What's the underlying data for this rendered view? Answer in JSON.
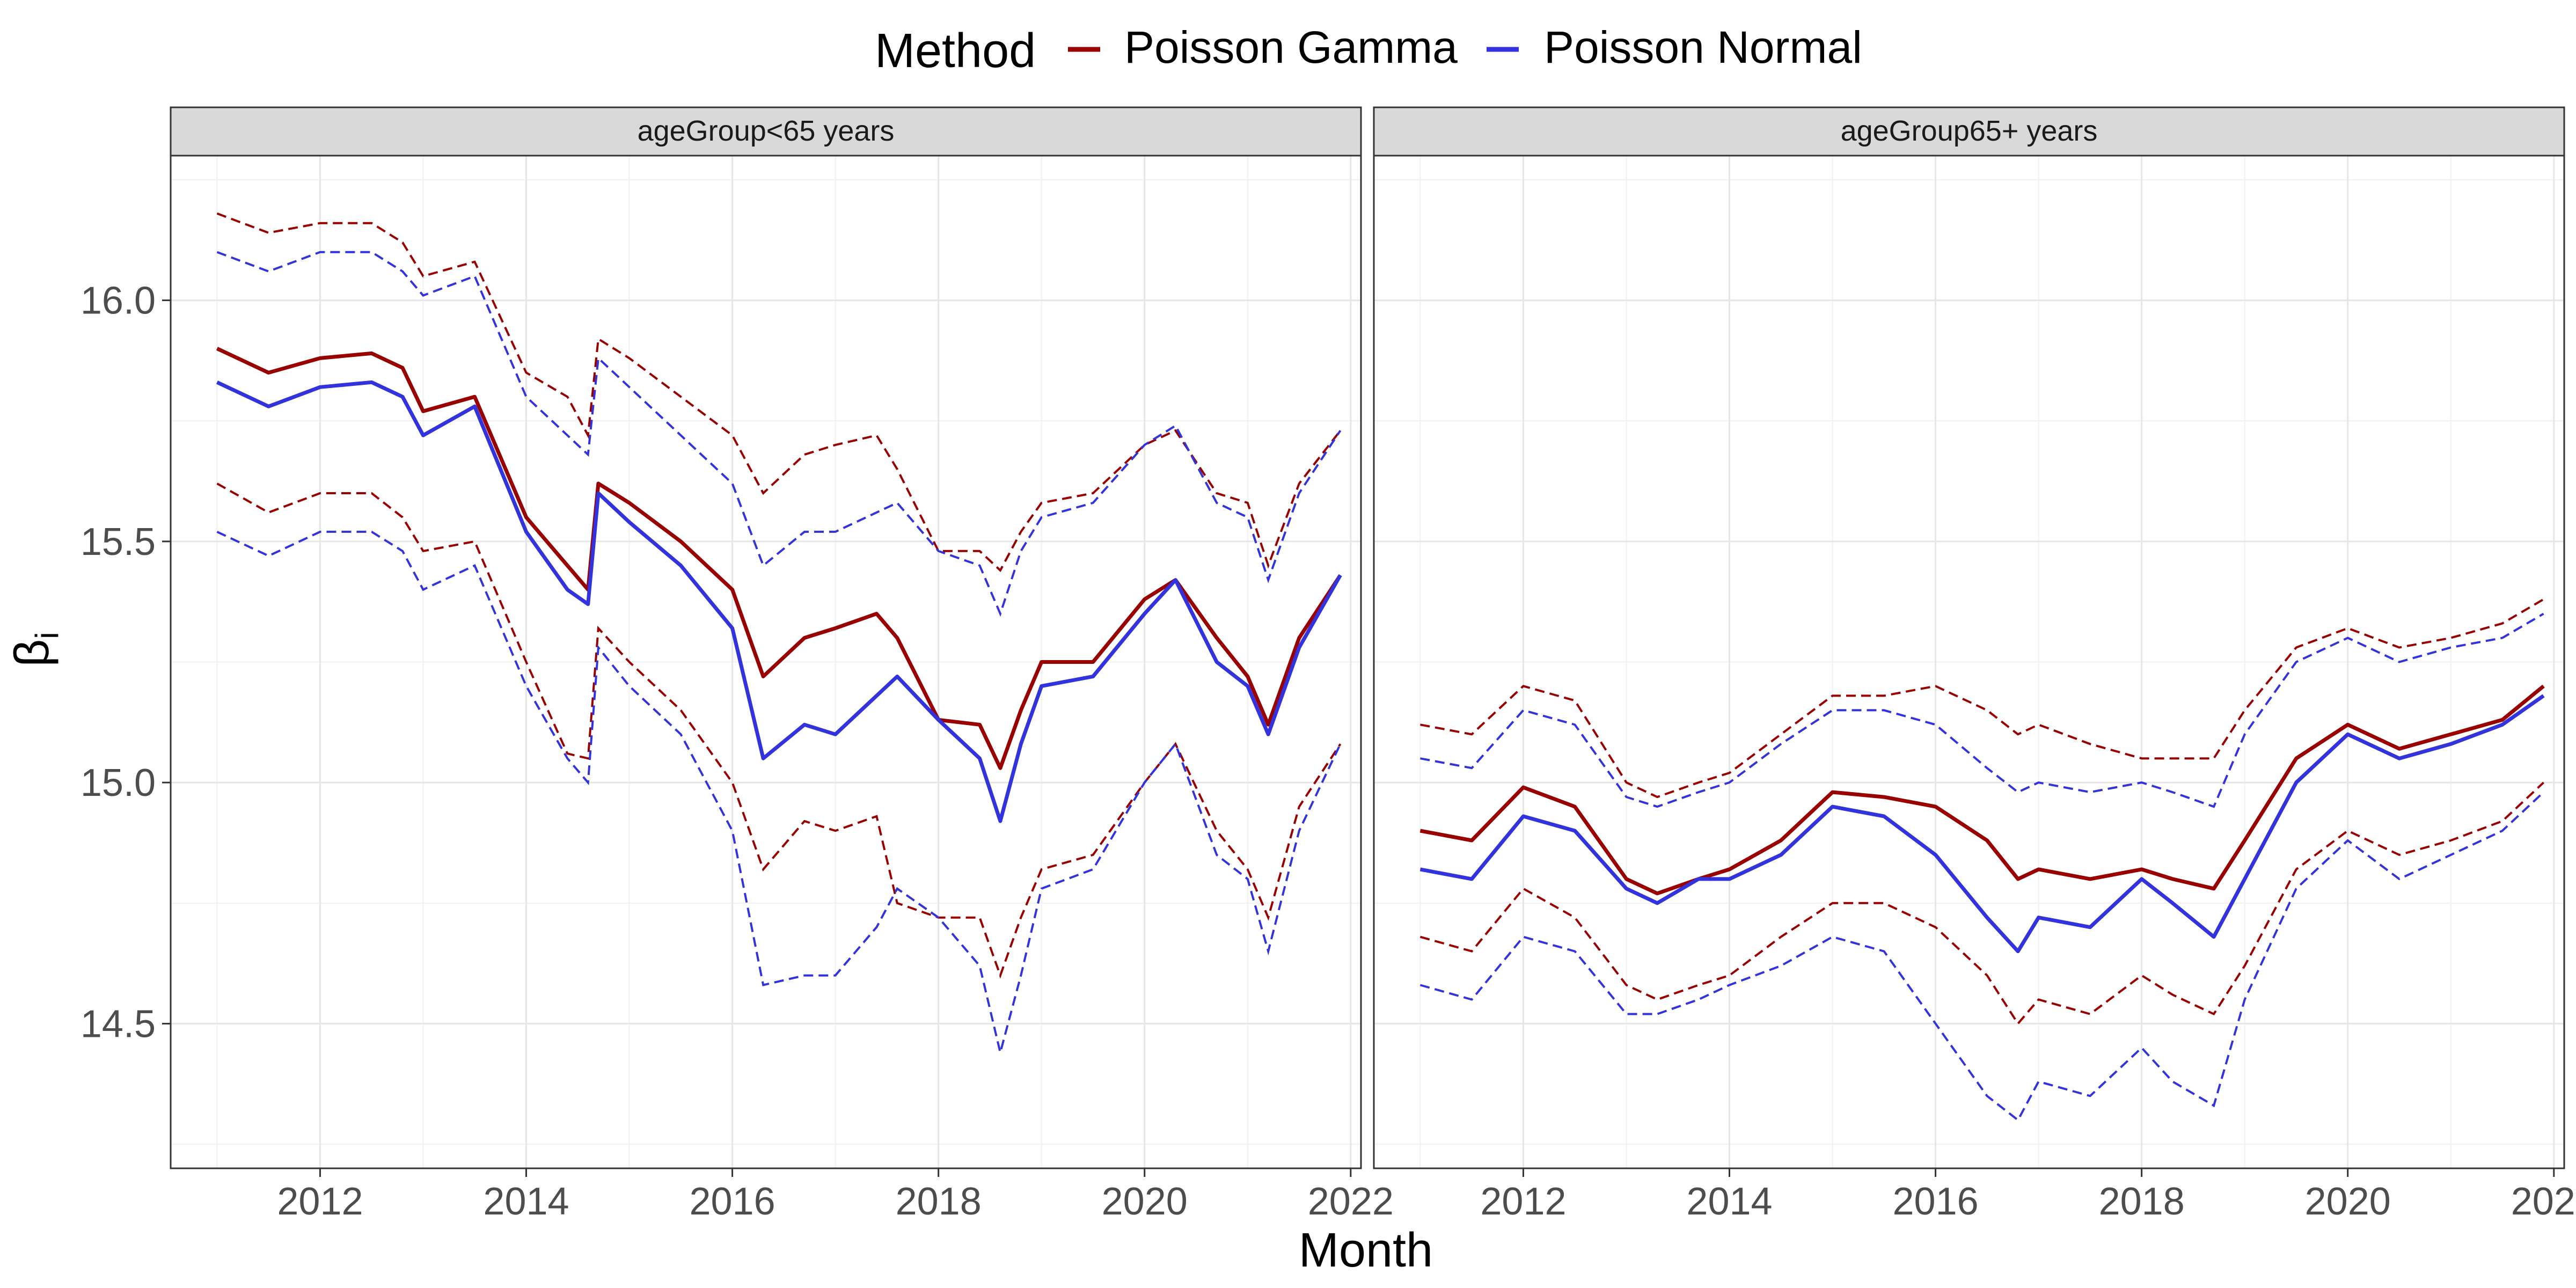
{
  "chart_data": {
    "type": "line",
    "ylabel_base": "β",
    "ylabel_sub": "i",
    "xlabel": "Month",
    "x_ticks": [
      2012,
      2014,
      2016,
      2018,
      2020,
      2022
    ],
    "y_ticks": [
      "14.5",
      "15.0",
      "15.5",
      "16.0"
    ],
    "y_tick_values": [
      14.5,
      15.0,
      15.5,
      16.0
    ],
    "xlim": [
      2010.55,
      2022.1
    ],
    "ylim": [
      14.2,
      16.3
    ],
    "grid": true,
    "legend": {
      "title": "Method",
      "position": "top",
      "entries": [
        {
          "label": "Poisson Gamma",
          "color": "#990000"
        },
        {
          "label": "Poisson Normal",
          "color": "#3333dd"
        }
      ]
    },
    "line_styles": {
      "estimate": "solid",
      "interval": "dashed"
    },
    "panels": [
      {
        "strip": "ageGroup<65 years",
        "series": [
          {
            "method": "Poisson Gamma",
            "x": [
              2011.0,
              2011.5,
              2012.0,
              2012.5,
              2012.8,
              2013.0,
              2013.5,
              2014.0,
              2014.4,
              2014.6,
              2014.7,
              2015.0,
              2015.5,
              2016.0,
              2016.3,
              2016.7,
              2017.0,
              2017.4,
              2017.6,
              2018.0,
              2018.4,
              2018.6,
              2018.8,
              2019.0,
              2019.5,
              2020.0,
              2020.3,
              2020.7,
              2021.0,
              2021.2,
              2021.5,
              2021.9
            ],
            "y": [
              15.9,
              15.85,
              15.88,
              15.89,
              15.86,
              15.77,
              15.8,
              15.55,
              15.45,
              15.4,
              15.62,
              15.58,
              15.5,
              15.4,
              15.22,
              15.3,
              15.32,
              15.35,
              15.3,
              15.13,
              15.12,
              15.03,
              15.15,
              15.25,
              15.25,
              15.38,
              15.42,
              15.3,
              15.22,
              15.12,
              15.3,
              15.43
            ],
            "lower": [
              15.62,
              15.56,
              15.6,
              15.6,
              15.55,
              15.48,
              15.5,
              15.25,
              15.06,
              15.05,
              15.32,
              15.25,
              15.15,
              15.0,
              14.82,
              14.92,
              14.9,
              14.93,
              14.75,
              14.72,
              14.72,
              14.6,
              14.72,
              14.82,
              14.85,
              15.0,
              15.08,
              14.9,
              14.82,
              14.72,
              14.95,
              15.08
            ],
            "upper": [
              16.18,
              16.14,
              16.16,
              16.16,
              16.12,
              16.05,
              16.08,
              15.85,
              15.8,
              15.72,
              15.92,
              15.88,
              15.8,
              15.72,
              15.6,
              15.68,
              15.7,
              15.72,
              15.65,
              15.48,
              15.48,
              15.44,
              15.52,
              15.58,
              15.6,
              15.7,
              15.73,
              15.6,
              15.58,
              15.45,
              15.62,
              15.73
            ]
          },
          {
            "method": "Poisson Normal",
            "x": [
              2011.0,
              2011.5,
              2012.0,
              2012.5,
              2012.8,
              2013.0,
              2013.5,
              2014.0,
              2014.4,
              2014.6,
              2014.7,
              2015.0,
              2015.5,
              2016.0,
              2016.3,
              2016.7,
              2017.0,
              2017.4,
              2017.6,
              2018.0,
              2018.4,
              2018.6,
              2018.8,
              2019.0,
              2019.5,
              2020.0,
              2020.3,
              2020.7,
              2021.0,
              2021.2,
              2021.5,
              2021.9
            ],
            "y": [
              15.83,
              15.78,
              15.82,
              15.83,
              15.8,
              15.72,
              15.78,
              15.52,
              15.4,
              15.37,
              15.6,
              15.54,
              15.45,
              15.32,
              15.05,
              15.12,
              15.1,
              15.18,
              15.22,
              15.13,
              15.05,
              14.92,
              15.08,
              15.2,
              15.22,
              15.35,
              15.42,
              15.25,
              15.2,
              15.1,
              15.28,
              15.43
            ],
            "lower": [
              15.52,
              15.47,
              15.52,
              15.52,
              15.48,
              15.4,
              15.45,
              15.2,
              15.05,
              15.0,
              15.28,
              15.2,
              15.1,
              14.9,
              14.58,
              14.6,
              14.6,
              14.7,
              14.78,
              14.72,
              14.62,
              14.44,
              14.6,
              14.78,
              14.82,
              15.0,
              15.08,
              14.85,
              14.8,
              14.65,
              14.9,
              15.08
            ],
            "upper": [
              16.1,
              16.06,
              16.1,
              16.1,
              16.06,
              16.01,
              16.05,
              15.8,
              15.72,
              15.68,
              15.88,
              15.82,
              15.72,
              15.62,
              15.45,
              15.52,
              15.52,
              15.56,
              15.58,
              15.48,
              15.45,
              15.35,
              15.48,
              15.55,
              15.58,
              15.7,
              15.74,
              15.58,
              15.55,
              15.42,
              15.6,
              15.73
            ]
          }
        ]
      },
      {
        "strip": "ageGroup65+ years",
        "series": [
          {
            "method": "Poisson Gamma",
            "x": [
              2011.0,
              2011.5,
              2012.0,
              2012.5,
              2013.0,
              2013.3,
              2013.7,
              2014.0,
              2014.5,
              2015.0,
              2015.5,
              2016.0,
              2016.5,
              2016.8,
              2017.0,
              2017.5,
              2018.0,
              2018.3,
              2018.7,
              2019.0,
              2019.5,
              2020.0,
              2020.5,
              2021.0,
              2021.5,
              2021.9
            ],
            "y": [
              14.9,
              14.88,
              14.99,
              14.95,
              14.8,
              14.77,
              14.8,
              14.82,
              14.88,
              14.98,
              14.97,
              14.95,
              14.88,
              14.8,
              14.82,
              14.8,
              14.82,
              14.8,
              14.78,
              14.88,
              15.05,
              15.12,
              15.07,
              15.1,
              15.13,
              15.2
            ],
            "lower": [
              14.68,
              14.65,
              14.78,
              14.72,
              14.58,
              14.55,
              14.58,
              14.6,
              14.68,
              14.75,
              14.75,
              14.7,
              14.6,
              14.5,
              14.55,
              14.52,
              14.6,
              14.56,
              14.52,
              14.62,
              14.82,
              14.9,
              14.85,
              14.88,
              14.92,
              15.0
            ],
            "upper": [
              15.12,
              15.1,
              15.2,
              15.17,
              15.0,
              14.97,
              15.0,
              15.02,
              15.1,
              15.18,
              15.18,
              15.2,
              15.15,
              15.1,
              15.12,
              15.08,
              15.05,
              15.05,
              15.05,
              15.15,
              15.28,
              15.32,
              15.28,
              15.3,
              15.33,
              15.38
            ]
          },
          {
            "method": "Poisson Normal",
            "x": [
              2011.0,
              2011.5,
              2012.0,
              2012.5,
              2013.0,
              2013.3,
              2013.7,
              2014.0,
              2014.5,
              2015.0,
              2015.5,
              2016.0,
              2016.5,
              2016.8,
              2017.0,
              2017.5,
              2018.0,
              2018.3,
              2018.7,
              2019.0,
              2019.5,
              2020.0,
              2020.5,
              2021.0,
              2021.5,
              2021.9
            ],
            "y": [
              14.82,
              14.8,
              14.93,
              14.9,
              14.78,
              14.75,
              14.8,
              14.8,
              14.85,
              14.95,
              14.93,
              14.85,
              14.72,
              14.65,
              14.72,
              14.7,
              14.8,
              14.75,
              14.68,
              14.8,
              15.0,
              15.1,
              15.05,
              15.08,
              15.12,
              15.18
            ],
            "lower": [
              14.58,
              14.55,
              14.68,
              14.65,
              14.52,
              14.52,
              14.55,
              14.58,
              14.62,
              14.68,
              14.65,
              14.5,
              14.35,
              14.3,
              14.38,
              14.35,
              14.45,
              14.38,
              14.33,
              14.55,
              14.78,
              14.88,
              14.8,
              14.85,
              14.9,
              14.98
            ],
            "upper": [
              15.05,
              15.03,
              15.15,
              15.12,
              14.97,
              14.95,
              14.98,
              15.0,
              15.08,
              15.15,
              15.15,
              15.12,
              15.03,
              14.98,
              15.0,
              14.98,
              15.0,
              14.98,
              14.95,
              15.1,
              15.25,
              15.3,
              15.25,
              15.28,
              15.3,
              15.35
            ]
          }
        ]
      }
    ]
  }
}
